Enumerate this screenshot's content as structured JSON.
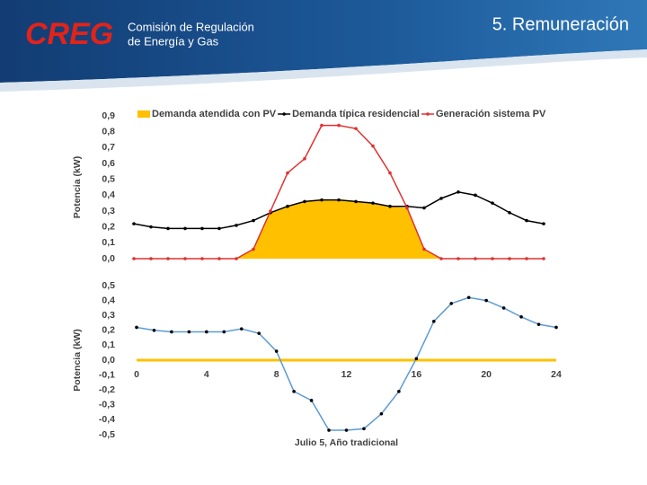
{
  "header": {
    "logo": "CREG",
    "org_line1": "Comisión de Regulación",
    "org_line2": "de Energía y Gas",
    "section": "5. Remuneración"
  },
  "chart_data": [
    {
      "type": "line",
      "ylabel": "Potencia (kW)",
      "x": [
        0,
        1,
        2,
        3,
        4,
        5,
        6,
        7,
        8,
        9,
        10,
        11,
        12,
        13,
        14,
        15,
        16,
        17,
        18,
        19,
        20,
        21,
        22,
        23,
        24
      ],
      "xlim": [
        0,
        24
      ],
      "ylim": [
        0,
        0.9
      ],
      "yticks": [
        {
          "value": 0,
          "label": "0,0"
        },
        {
          "value": 0.1,
          "label": "0,1"
        },
        {
          "value": 0.2,
          "label": "0,2"
        },
        {
          "value": 0.3,
          "label": "0,3"
        },
        {
          "value": 0.4,
          "label": "0,4"
        },
        {
          "value": 0.5,
          "label": "0,5"
        },
        {
          "value": 0.6,
          "label": "0,6"
        },
        {
          "value": 0.7,
          "label": "0,7"
        },
        {
          "value": 0.8,
          "label": "0,8"
        },
        {
          "value": 0.9,
          "label": "0,9"
        }
      ],
      "legend": "top",
      "series": [
        {
          "name": "Demanda atendida con PV",
          "color": "#ffc000",
          "fill": true,
          "values": [
            0,
            0,
            0,
            0,
            0,
            0,
            0,
            0.06,
            0.29,
            0.33,
            0.36,
            0.37,
            0.37,
            0.36,
            0.35,
            0.33,
            0.32,
            0.06,
            0,
            0,
            0,
            0,
            0,
            0,
            0
          ]
        },
        {
          "name": "Demanda típica residencial",
          "color": "#000000",
          "marker_color": "#000000",
          "values": [
            0.22,
            0.2,
            0.19,
            0.19,
            0.19,
            0.19,
            0.21,
            0.24,
            0.29,
            0.33,
            0.36,
            0.37,
            0.37,
            0.36,
            0.35,
            0.33,
            0.33,
            0.32,
            0.38,
            0.42,
            0.4,
            0.35,
            0.29,
            0.24,
            0.22
          ]
        },
        {
          "name": "Generación sistema PV",
          "color": "#e03030",
          "marker_color": "#e03030",
          "values": [
            0,
            0,
            0,
            0,
            0,
            0,
            0,
            0.06,
            0.3,
            0.54,
            0.63,
            0.84,
            0.84,
            0.82,
            0.71,
            0.54,
            0.32,
            0.06,
            0,
            0,
            0,
            0,
            0,
            0,
            0
          ]
        }
      ]
    },
    {
      "type": "line",
      "ylabel": "Potencia (kW)",
      "xlabel": "Julio 5, Año tradicional",
      "x": [
        0,
        1,
        2,
        3,
        4,
        5,
        6,
        7,
        8,
        9,
        10,
        11,
        12,
        13,
        14,
        15,
        16,
        17,
        18,
        19,
        20,
        21,
        22,
        23,
        24
      ],
      "xlim": [
        0,
        24
      ],
      "xticks": [
        0,
        4,
        8,
        12,
        16,
        20,
        24
      ],
      "ylim": [
        -0.5,
        0.5
      ],
      "yticks": [
        {
          "value": -0.5,
          "label": "-0,5"
        },
        {
          "value": -0.4,
          "label": "-0,4"
        },
        {
          "value": -0.3,
          "label": "-0,3"
        },
        {
          "value": -0.2,
          "label": "-0,2"
        },
        {
          "value": -0.1,
          "label": "-0,1"
        },
        {
          "value": 0,
          "label": "0,0"
        },
        {
          "value": 0.1,
          "label": "0,1"
        },
        {
          "value": 0.2,
          "label": "0,2"
        },
        {
          "value": 0.3,
          "label": "0,3"
        },
        {
          "value": 0.4,
          "label": "0,4"
        },
        {
          "value": 0.5,
          "label": "0,5"
        }
      ],
      "zero_line_color": "#ffc000",
      "series": [
        {
          "color": "#5b9bd5",
          "marker_color": "#000000",
          "values": [
            0.22,
            0.2,
            0.19,
            0.19,
            0.19,
            0.19,
            0.21,
            0.18,
            0.06,
            -0.21,
            -0.27,
            -0.47,
            -0.47,
            -0.46,
            -0.36,
            -0.21,
            0.01,
            0.26,
            0.38,
            0.42,
            0.4,
            0.35,
            0.29,
            0.24,
            0.22
          ]
        }
      ]
    }
  ]
}
